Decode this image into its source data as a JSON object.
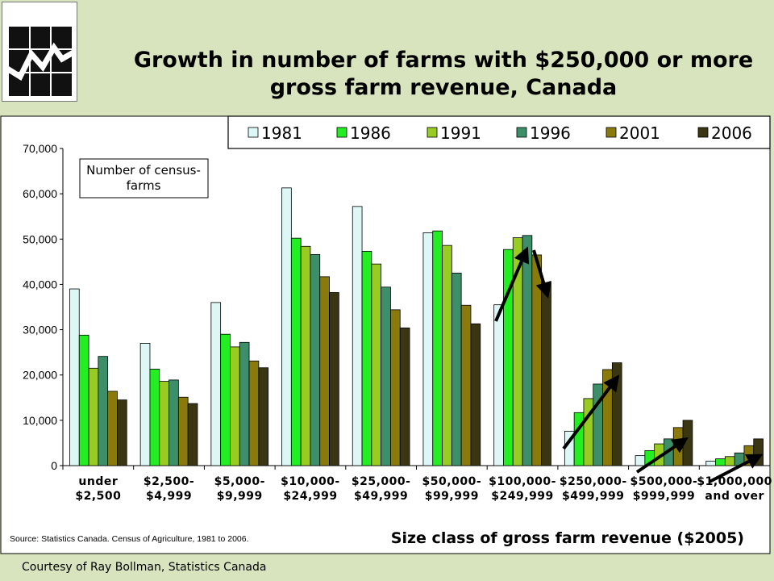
{
  "slide": {
    "title_line1": "Growth in number of farms with $250,000 or more",
    "title_line2": "gross farm revenue, Canada",
    "courtesy": "Courtesy of Ray Bollman, Statistics Canada",
    "logo_icon": "statistics-canada-logo-icon"
  },
  "chart_data": {
    "type": "bar",
    "ylabel_box": [
      "Number of census-",
      "farms"
    ],
    "xlabel": "Size class of gross farm revenue ($2005)",
    "source": "Source: Statistics Canada. Census of Agriculture, 1981 to 2006.",
    "ylim": [
      0,
      70000
    ],
    "yticks": [
      0,
      10000,
      20000,
      30000,
      40000,
      50000,
      60000,
      70000
    ],
    "ytick_labels": [
      "0",
      "10,000",
      "20,000",
      "30,000",
      "40,000",
      "50,000",
      "60,000",
      "70,000"
    ],
    "grid": false,
    "legend_position": "top",
    "categories": [
      [
        "under",
        "$2,500"
      ],
      [
        "$2,500-",
        "$4,999"
      ],
      [
        "$5,000-",
        "$9,999"
      ],
      [
        "$10,000-",
        "$24,999"
      ],
      [
        "$25,000-",
        "$49,999"
      ],
      [
        "$50,000-",
        "$99,999"
      ],
      [
        "$100,000-",
        "$249,999"
      ],
      [
        "$250,000-",
        "$499,999"
      ],
      [
        "$500,000-",
        "$999,999"
      ],
      [
        "$1,000,000",
        "and over"
      ]
    ],
    "series": [
      {
        "name": "1981",
        "color": "#ddf7f7",
        "values": [
          39000,
          27000,
          36000,
          61300,
          57200,
          51400,
          35500,
          7600,
          2200,
          1000
        ]
      },
      {
        "name": "1986",
        "color": "#22ee22",
        "values": [
          28800,
          21300,
          29000,
          50200,
          47300,
          51800,
          47700,
          11700,
          3300,
          1500
        ]
      },
      {
        "name": "1991",
        "color": "#99cc22",
        "values": [
          21500,
          18600,
          26200,
          48400,
          44500,
          48600,
          50300,
          14800,
          4800,
          2000
        ]
      },
      {
        "name": "1996",
        "color": "#3d8f6a",
        "values": [
          24100,
          18900,
          27200,
          46600,
          39400,
          42500,
          50800,
          18000,
          5900,
          2800
        ]
      },
      {
        "name": "2001",
        "color": "#8a7a0c",
        "values": [
          16400,
          15100,
          23100,
          41700,
          34400,
          35400,
          46500,
          21200,
          8400,
          4400
        ]
      },
      {
        "name": "2006",
        "color": "#3a3512",
        "values": [
          14500,
          13700,
          21600,
          38200,
          30400,
          31300,
          40400,
          22700,
          10000,
          5900
        ]
      }
    ]
  }
}
